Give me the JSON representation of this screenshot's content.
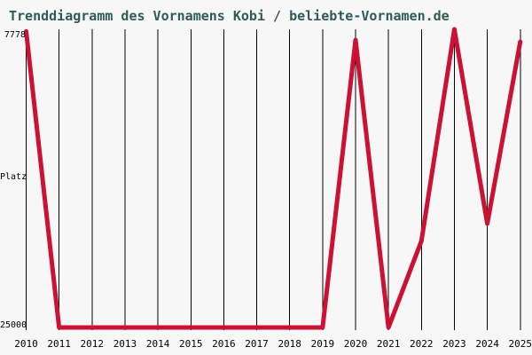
{
  "title": "Trenddiagramm des Vornamens Kobi / beliebte-Vornamen.de",
  "colors": {
    "background": "#f7f7f7",
    "title_text": "#2f5a5a",
    "axis_text": "#000000",
    "gridline": "#000000",
    "trend_line": "#cb1232"
  },
  "y_axis": {
    "top_label": "7778",
    "middle_label": "Platz",
    "bottom_label": "25000"
  },
  "chart_data": {
    "type": "line",
    "title": "Trenddiagramm des Vornamens Kobi / beliebte-Vornamen.de",
    "xlabel": "",
    "ylabel": "Platz",
    "x": [
      "2010",
      "2011",
      "2012",
      "2013",
      "2014",
      "2015",
      "2016",
      "2017",
      "2018",
      "2019",
      "2020",
      "2021",
      "2022",
      "2023",
      "2024",
      "2025"
    ],
    "series": [
      {
        "name": "Kobi",
        "values": [
          7900,
          25000,
          25000,
          25000,
          25000,
          25000,
          25000,
          25000,
          25000,
          25000,
          8400,
          25000,
          20000,
          7778,
          19000,
          8500
        ]
      }
    ],
    "ylim": [
      7778,
      25000
    ],
    "y_inverted": true,
    "grid": "vertical",
    "legend": "none"
  }
}
